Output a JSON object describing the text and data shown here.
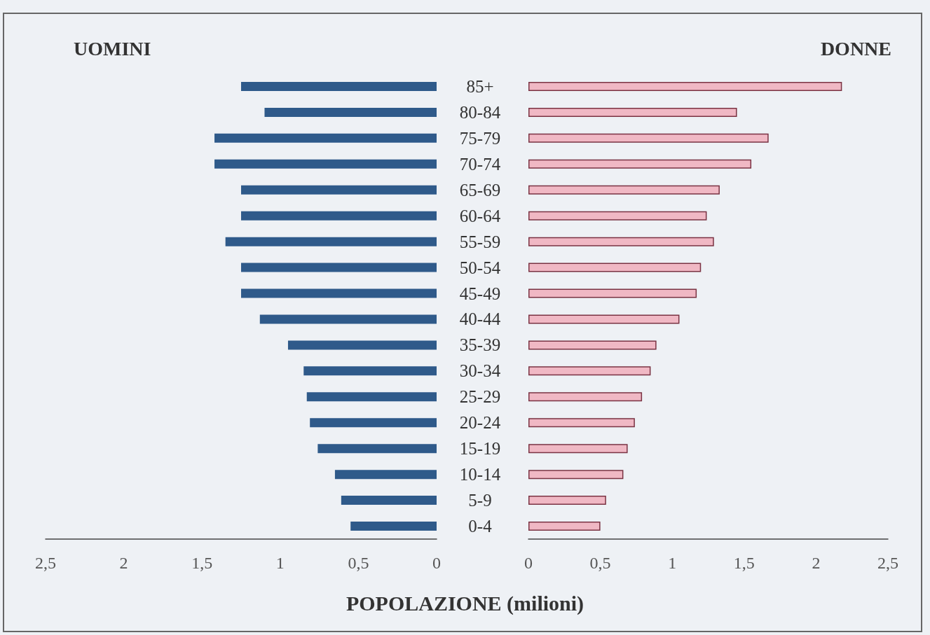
{
  "chart_data": [
    {
      "type": "bar",
      "orientation": "horizontal",
      "title": "UOMINI",
      "xlabel": "POPOLAZIONE (milioni)",
      "categories": [
        "85+",
        "80-84",
        "75-79",
        "70-74",
        "65-69",
        "60-64",
        "55-59",
        "50-54",
        "45-49",
        "40-44",
        "35-39",
        "30-34",
        "25-29",
        "20-24",
        "15-19",
        "10-14",
        "5-9",
        "0-4"
      ],
      "series": [
        {
          "color": "#2f5a8a",
          "values": [
            1.25,
            1.1,
            1.42,
            1.42,
            1.25,
            1.25,
            1.35,
            1.25,
            1.25,
            1.13,
            0.95,
            0.85,
            0.83,
            0.81,
            0.76,
            0.65,
            0.61,
            0.55
          ]
        }
      ],
      "xlim": [
        2.5,
        0
      ],
      "xticks": [
        {
          "value": 2.5,
          "label": "2,5"
        },
        2,
        {
          "value": 1.5,
          "label": "1,5"
        },
        1,
        {
          "value": 0.5,
          "label": "0,5"
        },
        0
      ],
      "grid": false
    },
    {
      "type": "bar",
      "orientation": "horizontal",
      "title": "DONNE",
      "categories": [
        null,
        null,
        null,
        null,
        null,
        null,
        null,
        null,
        null,
        null,
        null,
        null,
        null,
        null,
        null,
        null,
        null,
        null
      ],
      "series": [
        {
          "color": "#f0b8c4",
          "values": [
            2.18,
            1.45,
            1.67,
            1.55,
            1.33,
            1.24,
            1.29,
            1.2,
            1.17,
            1.05,
            0.89,
            0.85,
            0.79,
            0.74,
            0.69,
            0.66,
            0.54,
            0.5
          ]
        }
      ],
      "xlim": [
        0,
        2.5
      ],
      "xticks": [
        0,
        {
          "value": 0.5,
          "label": "0,5"
        },
        1,
        {
          "value": 1.5,
          "label": "1,5"
        },
        2,
        {
          "value": 2.5,
          "label": "2,5"
        }
      ],
      "grid": false,
      "tick_labels": "x"
    }
  ]
}
